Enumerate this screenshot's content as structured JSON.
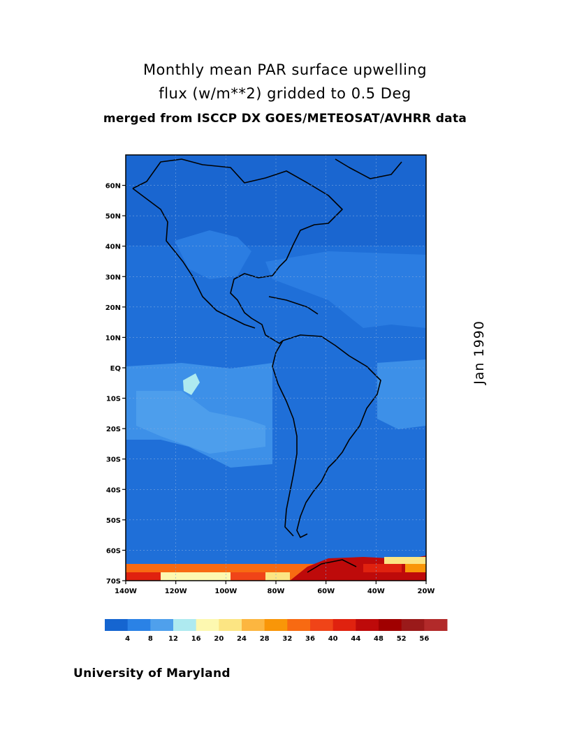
{
  "title": {
    "line1": "Monthly mean PAR surface upwelling",
    "line2": "flux (w/m**2) gridded to 0.5 Deg",
    "line3": "merged from ISCCP DX GOES/METEOSAT/AVHRR data"
  },
  "date_label": "Jan 1990",
  "credit": "University of Maryland",
  "map": {
    "lon_range": [
      -140,
      -20
    ],
    "lat_range": [
      -70,
      70
    ],
    "lat_ticks": [
      {
        "value": 60,
        "label": "60N"
      },
      {
        "value": 50,
        "label": "50N"
      },
      {
        "value": 40,
        "label": "40N"
      },
      {
        "value": 30,
        "label": "30N"
      },
      {
        "value": 20,
        "label": "20N"
      },
      {
        "value": 10,
        "label": "10N"
      },
      {
        "value": 0,
        "label": "EQ"
      },
      {
        "value": -10,
        "label": "10S"
      },
      {
        "value": -20,
        "label": "20S"
      },
      {
        "value": -30,
        "label": "30S"
      },
      {
        "value": -40,
        "label": "40S"
      },
      {
        "value": -50,
        "label": "50S"
      },
      {
        "value": -60,
        "label": "60S"
      },
      {
        "value": -70,
        "label": "70S"
      }
    ],
    "lon_ticks": [
      {
        "value": -140,
        "label": "140W"
      },
      {
        "value": -120,
        "label": "120W"
      },
      {
        "value": -100,
        "label": "100W"
      },
      {
        "value": -80,
        "label": "80W"
      },
      {
        "value": -60,
        "label": "60W"
      },
      {
        "value": -40,
        "label": "40W"
      },
      {
        "value": -20,
        "label": "20W"
      }
    ],
    "grid": true,
    "colors": {
      "ocean_base": "#1f6fd8",
      "coast": "#000000"
    }
  },
  "colorbar": {
    "labels": [
      "4",
      "8",
      "12",
      "16",
      "20",
      "24",
      "28",
      "32",
      "36",
      "40",
      "44",
      "48",
      "52",
      "56"
    ],
    "colors": [
      "#1565d0",
      "#2a82e6",
      "#4fa0ec",
      "#aeeaf0",
      "#fdf8b0",
      "#fce583",
      "#fcb640",
      "#f99608",
      "#f86a12",
      "#f04418",
      "#e0220f",
      "#be0a0a",
      "#a00000",
      "#9a1a1a",
      "#b22a2a"
    ]
  }
}
